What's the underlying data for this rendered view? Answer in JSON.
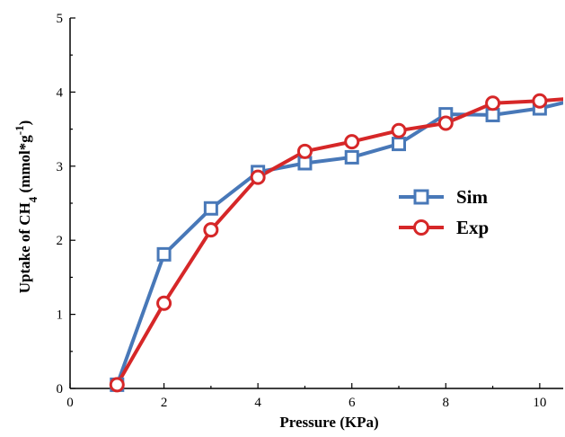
{
  "chart_data": {
    "type": "line",
    "x": [
      1,
      2,
      3,
      4,
      5,
      6,
      7,
      8,
      9,
      10,
      11
    ],
    "xlabel": "Pressure (KPa)",
    "ylabel_prefix": "Uptake of CH",
    "ylabel_subscript": "4",
    "ylabel_unit_open": " (mmol*g",
    "ylabel_superscript": "-1",
    "ylabel_close": ")",
    "xlim": [
      0,
      10.5
    ],
    "ylim": [
      0,
      5
    ],
    "xticks": [
      0,
      2,
      4,
      6,
      8,
      10
    ],
    "yticks": [
      0,
      1,
      2,
      3,
      4,
      5
    ],
    "grid": false,
    "legend_position": "right-middle",
    "series": [
      {
        "name": "Sim",
        "color": "#4878b8",
        "marker": "square",
        "values": [
          0.05,
          1.81,
          2.43,
          2.92,
          3.04,
          3.12,
          3.3,
          3.7,
          3.69,
          3.78,
          3.93
        ]
      },
      {
        "name": "Exp",
        "color": "#d62728",
        "marker": "circle",
        "values": [
          0.05,
          1.15,
          2.14,
          2.85,
          3.2,
          3.33,
          3.48,
          3.58,
          3.85,
          3.88,
          3.93
        ]
      }
    ]
  }
}
